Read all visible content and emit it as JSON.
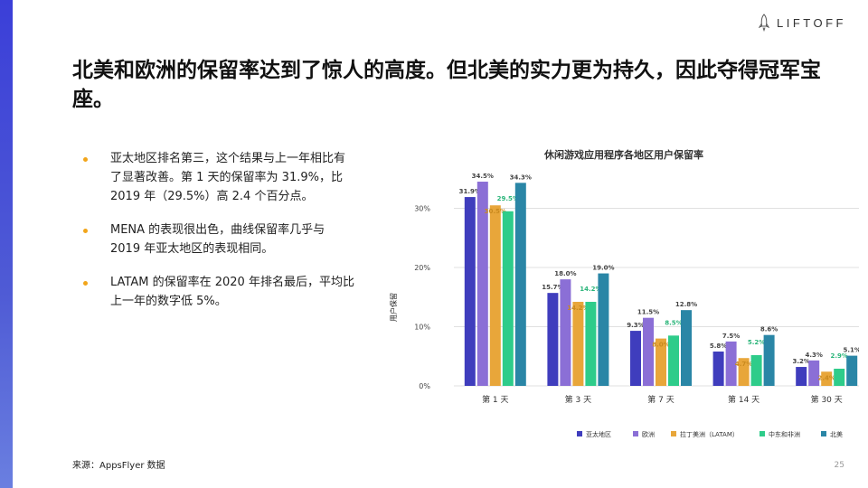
{
  "brand": {
    "logo_text": "LIFTOFF"
  },
  "title": "北美和欧洲的保留率达到了惊人的高度。但北美的实力更为持久，因此夺得冠军宝座。",
  "bullets": [
    "亚太地区排名第三，这个结果与上一年相比有了显著改善。第 1 天的保留率为 31.9%，比 2019 年（29.5%）高 2.4 个百分点。",
    "MENA 的表现很出色，曲线保留率几乎与 2019 年亚太地区的表现相同。",
    "LATAM 的保留率在 2020 年排名最后，平均比上一年的数字低 5%。"
  ],
  "source": "来源：AppsFlyer 数据",
  "page_number": "25",
  "colors": {
    "accent": "#f2a51a",
    "apac": "#3f3dbd",
    "europe": "#8b6fd6",
    "latam": "#e8a63a",
    "mena": "#2ecc8a",
    "na": "#2a86a6"
  },
  "chart_data": {
    "type": "bar",
    "title": "休闲游戏应用程序各地区用户保留率",
    "ylabel": "用户保留",
    "xlabel": "",
    "categories": [
      "第 1 天",
      "第 3 天",
      "第 7 天",
      "第 14 天",
      "第 30 天"
    ],
    "yticks": [
      "0%",
      "10%",
      "20%",
      "30%"
    ],
    "ylim": [
      0,
      35
    ],
    "grid": true,
    "legend_position": "bottom",
    "series": [
      {
        "name": "亚太地区",
        "color": "#3f3dbd",
        "values": [
          31.9,
          15.7,
          9.3,
          5.8,
          3.2
        ],
        "labels": [
          "31.9%",
          "15.7%",
          "9.3%",
          "5.8%",
          "3.2%"
        ]
      },
      {
        "name": "欧洲",
        "color": "#8b6fd6",
        "values": [
          34.5,
          18.0,
          11.5,
          7.5,
          4.3
        ],
        "labels": [
          "34.5%",
          "18.0%",
          "11.5%",
          "7.5%",
          "4.3%"
        ]
      },
      {
        "name": "拉丁美洲（LATAM）",
        "color": "#e8a63a",
        "values": [
          30.5,
          14.2,
          8.0,
          4.7,
          2.4
        ],
        "labels": [
          "30.5%",
          "14.2%",
          "8.0%",
          "4.7%",
          "2.4%"
        ]
      },
      {
        "name": "中东和非洲",
        "color": "#2ecc8a",
        "values": [
          29.5,
          14.2,
          8.5,
          5.2,
          2.9
        ],
        "labels": [
          "29.5%",
          "14.2%",
          "8.5%",
          "5.2%",
          "2.9%"
        ]
      },
      {
        "name": "北美",
        "color": "#2a86a6",
        "values": [
          34.3,
          19.0,
          12.8,
          8.6,
          5.1
        ],
        "labels": [
          "34.3%",
          "19.0%",
          "12.8%",
          "8.6%",
          "5.1%"
        ]
      }
    ]
  }
}
